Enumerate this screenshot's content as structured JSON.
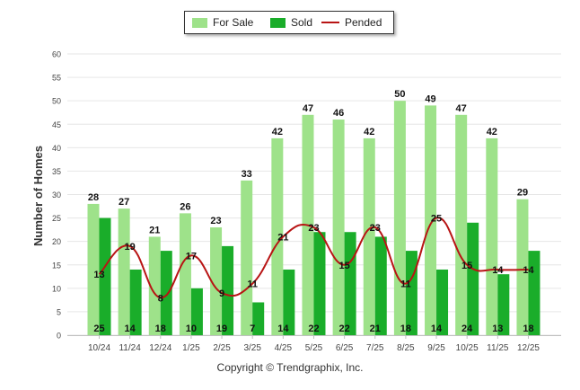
{
  "chart_data": {
    "type": "bar",
    "categories": [
      "10/24",
      "11/24",
      "12/24",
      "1/25",
      "2/25",
      "3/25",
      "4/25",
      "5/25",
      "6/25",
      "7/25",
      "8/25",
      "9/25",
      "10/25",
      "11/25",
      "12/25"
    ],
    "series": [
      {
        "name": "For Sale",
        "type": "bar",
        "color": "#9ee28a",
        "values": [
          28,
          27,
          21,
          26,
          23,
          33,
          42,
          47,
          46,
          42,
          50,
          49,
          47,
          42,
          29
        ]
      },
      {
        "name": "Sold",
        "type": "bar",
        "color": "#1aad2a",
        "values": [
          25,
          14,
          18,
          10,
          19,
          7,
          14,
          22,
          22,
          21,
          18,
          14,
          24,
          13,
          18
        ]
      },
      {
        "name": "Pended",
        "type": "line",
        "color": "#b81414",
        "values": [
          13,
          19,
          8,
          17,
          9,
          11,
          21,
          23,
          15,
          23,
          11,
          25,
          15,
          14,
          14
        ]
      }
    ],
    "ylabel": "Number of Homes",
    "xlabel": "",
    "ylim": [
      0,
      60
    ],
    "yticks": [
      0,
      5,
      10,
      15,
      20,
      25,
      30,
      35,
      40,
      45,
      50,
      55,
      60
    ],
    "grid": true,
    "legend": "top-center"
  },
  "copyright": "Copyright © Trendgraphix, Inc."
}
